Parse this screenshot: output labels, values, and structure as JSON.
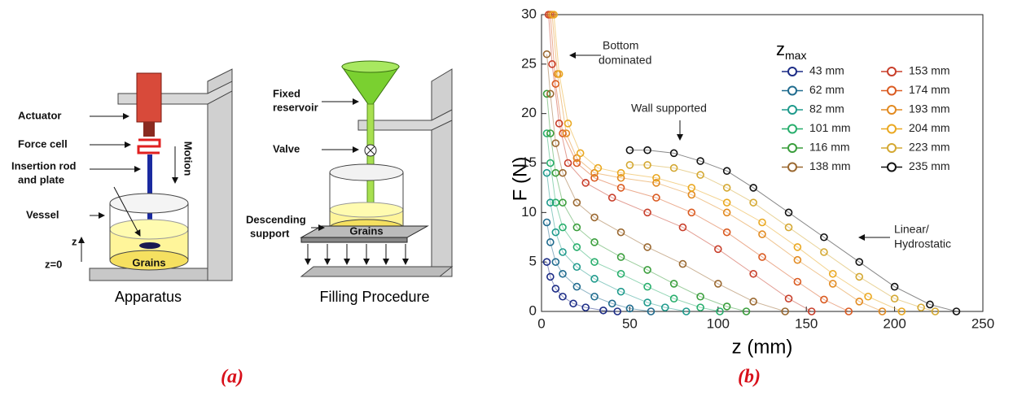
{
  "diagram": {
    "apparatus": {
      "title": "Apparatus",
      "actuator": "Actuator",
      "force_cell": "Force cell",
      "rod": [
        "Insertion rod",
        "and plate"
      ],
      "vessel": "Vessel",
      "z": "z",
      "z0": "z=0",
      "grains": "Grains",
      "motion": "Motion"
    },
    "filling": {
      "title": "Filling Procedure",
      "reservoir": [
        "Fixed",
        "reservoir"
      ],
      "valve": "Valve",
      "support": [
        "Descending",
        "support"
      ],
      "grains": "Grains"
    }
  },
  "captions": [
    "(a)",
    "(b)"
  ],
  "chart_data": {
    "type": "scatter",
    "xlabel": "z (mm)",
    "ylabel": "F (N)",
    "xlim": [
      0,
      250
    ],
    "ylim": [
      0,
      30
    ],
    "xticks": [
      0,
      50,
      100,
      150,
      200,
      250
    ],
    "yticks": [
      0,
      5,
      10,
      15,
      20,
      25,
      30
    ],
    "legend_title": {
      "text": "z",
      "subscript": "max"
    },
    "annotations": [
      {
        "lines": [
          "Bottom",
          "dominated"
        ]
      },
      {
        "lines": [
          "Wall supported"
        ]
      },
      {
        "lines": [
          "Linear/",
          "Hydrostatic"
        ]
      }
    ],
    "series": [
      {
        "name": "43 mm",
        "color": "#1c2c86",
        "x": [
          3,
          5,
          8,
          12,
          18,
          25,
          35,
          43
        ],
        "values": [
          5,
          3.5,
          2.3,
          1.5,
          0.8,
          0.4,
          0.1,
          0
        ]
      },
      {
        "name": "62 mm",
        "color": "#1f6b8e",
        "x": [
          3,
          5,
          8,
          12,
          20,
          30,
          40,
          50,
          62
        ],
        "values": [
          9,
          7,
          5,
          3.8,
          2.5,
          1.5,
          0.8,
          0.3,
          0
        ]
      },
      {
        "name": "82 mm",
        "color": "#1e9a8c",
        "x": [
          3,
          5,
          8,
          12,
          20,
          30,
          45,
          60,
          70,
          82
        ],
        "values": [
          14,
          11,
          8,
          6,
          4.5,
          3.3,
          2,
          0.9,
          0.4,
          0
        ]
      },
      {
        "name": "101 mm",
        "color": "#27ae6c",
        "x": [
          3,
          5,
          8,
          12,
          20,
          30,
          45,
          60,
          75,
          90,
          101
        ],
        "values": [
          18,
          15,
          11,
          8.5,
          6.5,
          5,
          3.8,
          2.5,
          1.3,
          0.4,
          0
        ]
      },
      {
        "name": "116 mm",
        "color": "#3a9e3c",
        "x": [
          3,
          5,
          8,
          12,
          20,
          30,
          45,
          60,
          75,
          90,
          105,
          116
        ],
        "values": [
          22,
          18,
          14,
          11,
          8.5,
          7,
          5.5,
          4.2,
          2.8,
          1.5,
          0.5,
          0
        ]
      },
      {
        "name": "138 mm",
        "color": "#9a6830",
        "x": [
          3,
          5,
          8,
          12,
          20,
          30,
          45,
          60,
          80,
          100,
          120,
          138
        ],
        "values": [
          26,
          22,
          17,
          14,
          11,
          9.5,
          8,
          6.5,
          4.8,
          2.8,
          1,
          0
        ]
      },
      {
        "name": "153 mm",
        "color": "#c83e2a",
        "x": [
          4,
          6,
          10,
          15,
          25,
          40,
          60,
          80,
          100,
          120,
          140,
          153
        ],
        "values": [
          30,
          25,
          19,
          15,
          13,
          11.5,
          10,
          8.5,
          6.3,
          3.8,
          1.3,
          0
        ]
      },
      {
        "name": "174 mm",
        "color": "#da5a20",
        "x": [
          5,
          8,
          12,
          20,
          30,
          45,
          65,
          85,
          105,
          125,
          145,
          160,
          174
        ],
        "values": [
          30,
          23,
          18,
          15,
          13.5,
          12.5,
          11.5,
          10,
          8,
          5.5,
          3,
          1.2,
          0
        ]
      },
      {
        "name": "193 mm",
        "color": "#e28a20",
        "x": [
          6,
          9,
          14,
          20,
          30,
          45,
          65,
          85,
          105,
          125,
          145,
          165,
          180,
          193
        ],
        "values": [
          30,
          24,
          18,
          15.5,
          14,
          13.5,
          13,
          11.8,
          10,
          7.8,
          5.2,
          2.8,
          1,
          0
        ]
      },
      {
        "name": "204 mm",
        "color": "#eaa820",
        "x": [
          7,
          10,
          15,
          22,
          32,
          45,
          65,
          85,
          105,
          125,
          145,
          165,
          185,
          204
        ],
        "values": [
          30,
          24,
          19,
          16,
          14.5,
          14,
          13.5,
          12.5,
          11,
          9,
          6.5,
          3.8,
          1.5,
          0
        ]
      },
      {
        "name": "223 mm",
        "color": "#d4a832",
        "x": [
          50,
          60,
          75,
          90,
          105,
          120,
          140,
          160,
          180,
          200,
          215,
          223
        ],
        "values": [
          14.8,
          14.8,
          14.5,
          13.8,
          12.5,
          11,
          8.5,
          6,
          3.5,
          1.3,
          0.4,
          0
        ]
      },
      {
        "name": "235 mm",
        "color": "#111111",
        "x": [
          50,
          60,
          75,
          90,
          105,
          120,
          140,
          160,
          180,
          200,
          220,
          235
        ],
        "values": [
          16.3,
          16.3,
          16,
          15.2,
          14.2,
          12.5,
          10,
          7.5,
          5,
          2.5,
          0.7,
          0
        ]
      }
    ]
  }
}
